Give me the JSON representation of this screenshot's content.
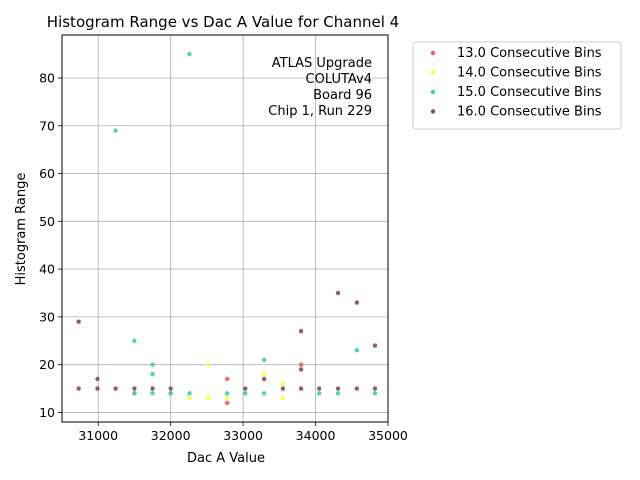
{
  "chart_data": {
    "type": "scatter",
    "title": "Histogram Range vs Dac A Value for Channel 4",
    "xlabel": "Dac A Value",
    "ylabel": "Histogram Range",
    "xlim": [
      30500,
      35000
    ],
    "ylim": [
      8,
      89
    ],
    "xticks": [
      31000,
      32000,
      33000,
      34000,
      35000
    ],
    "yticks": [
      10,
      20,
      30,
      40,
      50,
      60,
      70,
      80
    ],
    "grid": true,
    "legend_position": "outside-right",
    "annotation": [
      "ATLAS Upgrade",
      "COLUTAv4",
      "Board 96",
      "Chip 1, Run 229"
    ],
    "series": [
      {
        "name": "13.0 Consecutive Bins",
        "color": "#f0585f",
        "points": [
          [
            32780,
            17
          ],
          [
            32780,
            12
          ],
          [
            33800,
            20
          ],
          [
            32000,
            14
          ],
          [
            31500,
            14
          ]
        ]
      },
      {
        "name": "14.0 Consecutive Bins",
        "color": "#fefe3c",
        "points": [
          [
            32260,
            13
          ],
          [
            32520,
            13
          ],
          [
            32520,
            20
          ],
          [
            33290,
            18
          ],
          [
            33550,
            13
          ],
          [
            33550,
            16
          ],
          [
            32780,
            13
          ]
        ]
      },
      {
        "name": "15.0 Consecutive Bins",
        "color": "#3fcea5",
        "points": [
          [
            32260,
            85
          ],
          [
            31240,
            69
          ],
          [
            31500,
            25
          ],
          [
            31750,
            20
          ],
          [
            31750,
            18
          ],
          [
            33290,
            21
          ],
          [
            34570,
            23
          ],
          [
            31500,
            14
          ],
          [
            31750,
            14
          ],
          [
            32000,
            14
          ],
          [
            32260,
            14
          ],
          [
            32780,
            14
          ],
          [
            33030,
            14
          ],
          [
            33290,
            14
          ],
          [
            34050,
            14
          ],
          [
            34310,
            14
          ],
          [
            34820,
            14
          ]
        ]
      },
      {
        "name": "16.0 Consecutive Bins",
        "color": "#7d4c62",
        "points": [
          [
            30730,
            29
          ],
          [
            30730,
            15
          ],
          [
            30990,
            17
          ],
          [
            30990,
            15
          ],
          [
            31240,
            15
          ],
          [
            31500,
            15
          ],
          [
            31750,
            15
          ],
          [
            32000,
            15
          ],
          [
            33030,
            15
          ],
          [
            33290,
            17
          ],
          [
            33550,
            15
          ],
          [
            33800,
            27
          ],
          [
            33800,
            19
          ],
          [
            33800,
            15
          ],
          [
            34050,
            15
          ],
          [
            34310,
            35
          ],
          [
            34310,
            15
          ],
          [
            34570,
            33
          ],
          [
            34570,
            15
          ],
          [
            34820,
            24
          ],
          [
            34820,
            15
          ]
        ]
      }
    ]
  }
}
